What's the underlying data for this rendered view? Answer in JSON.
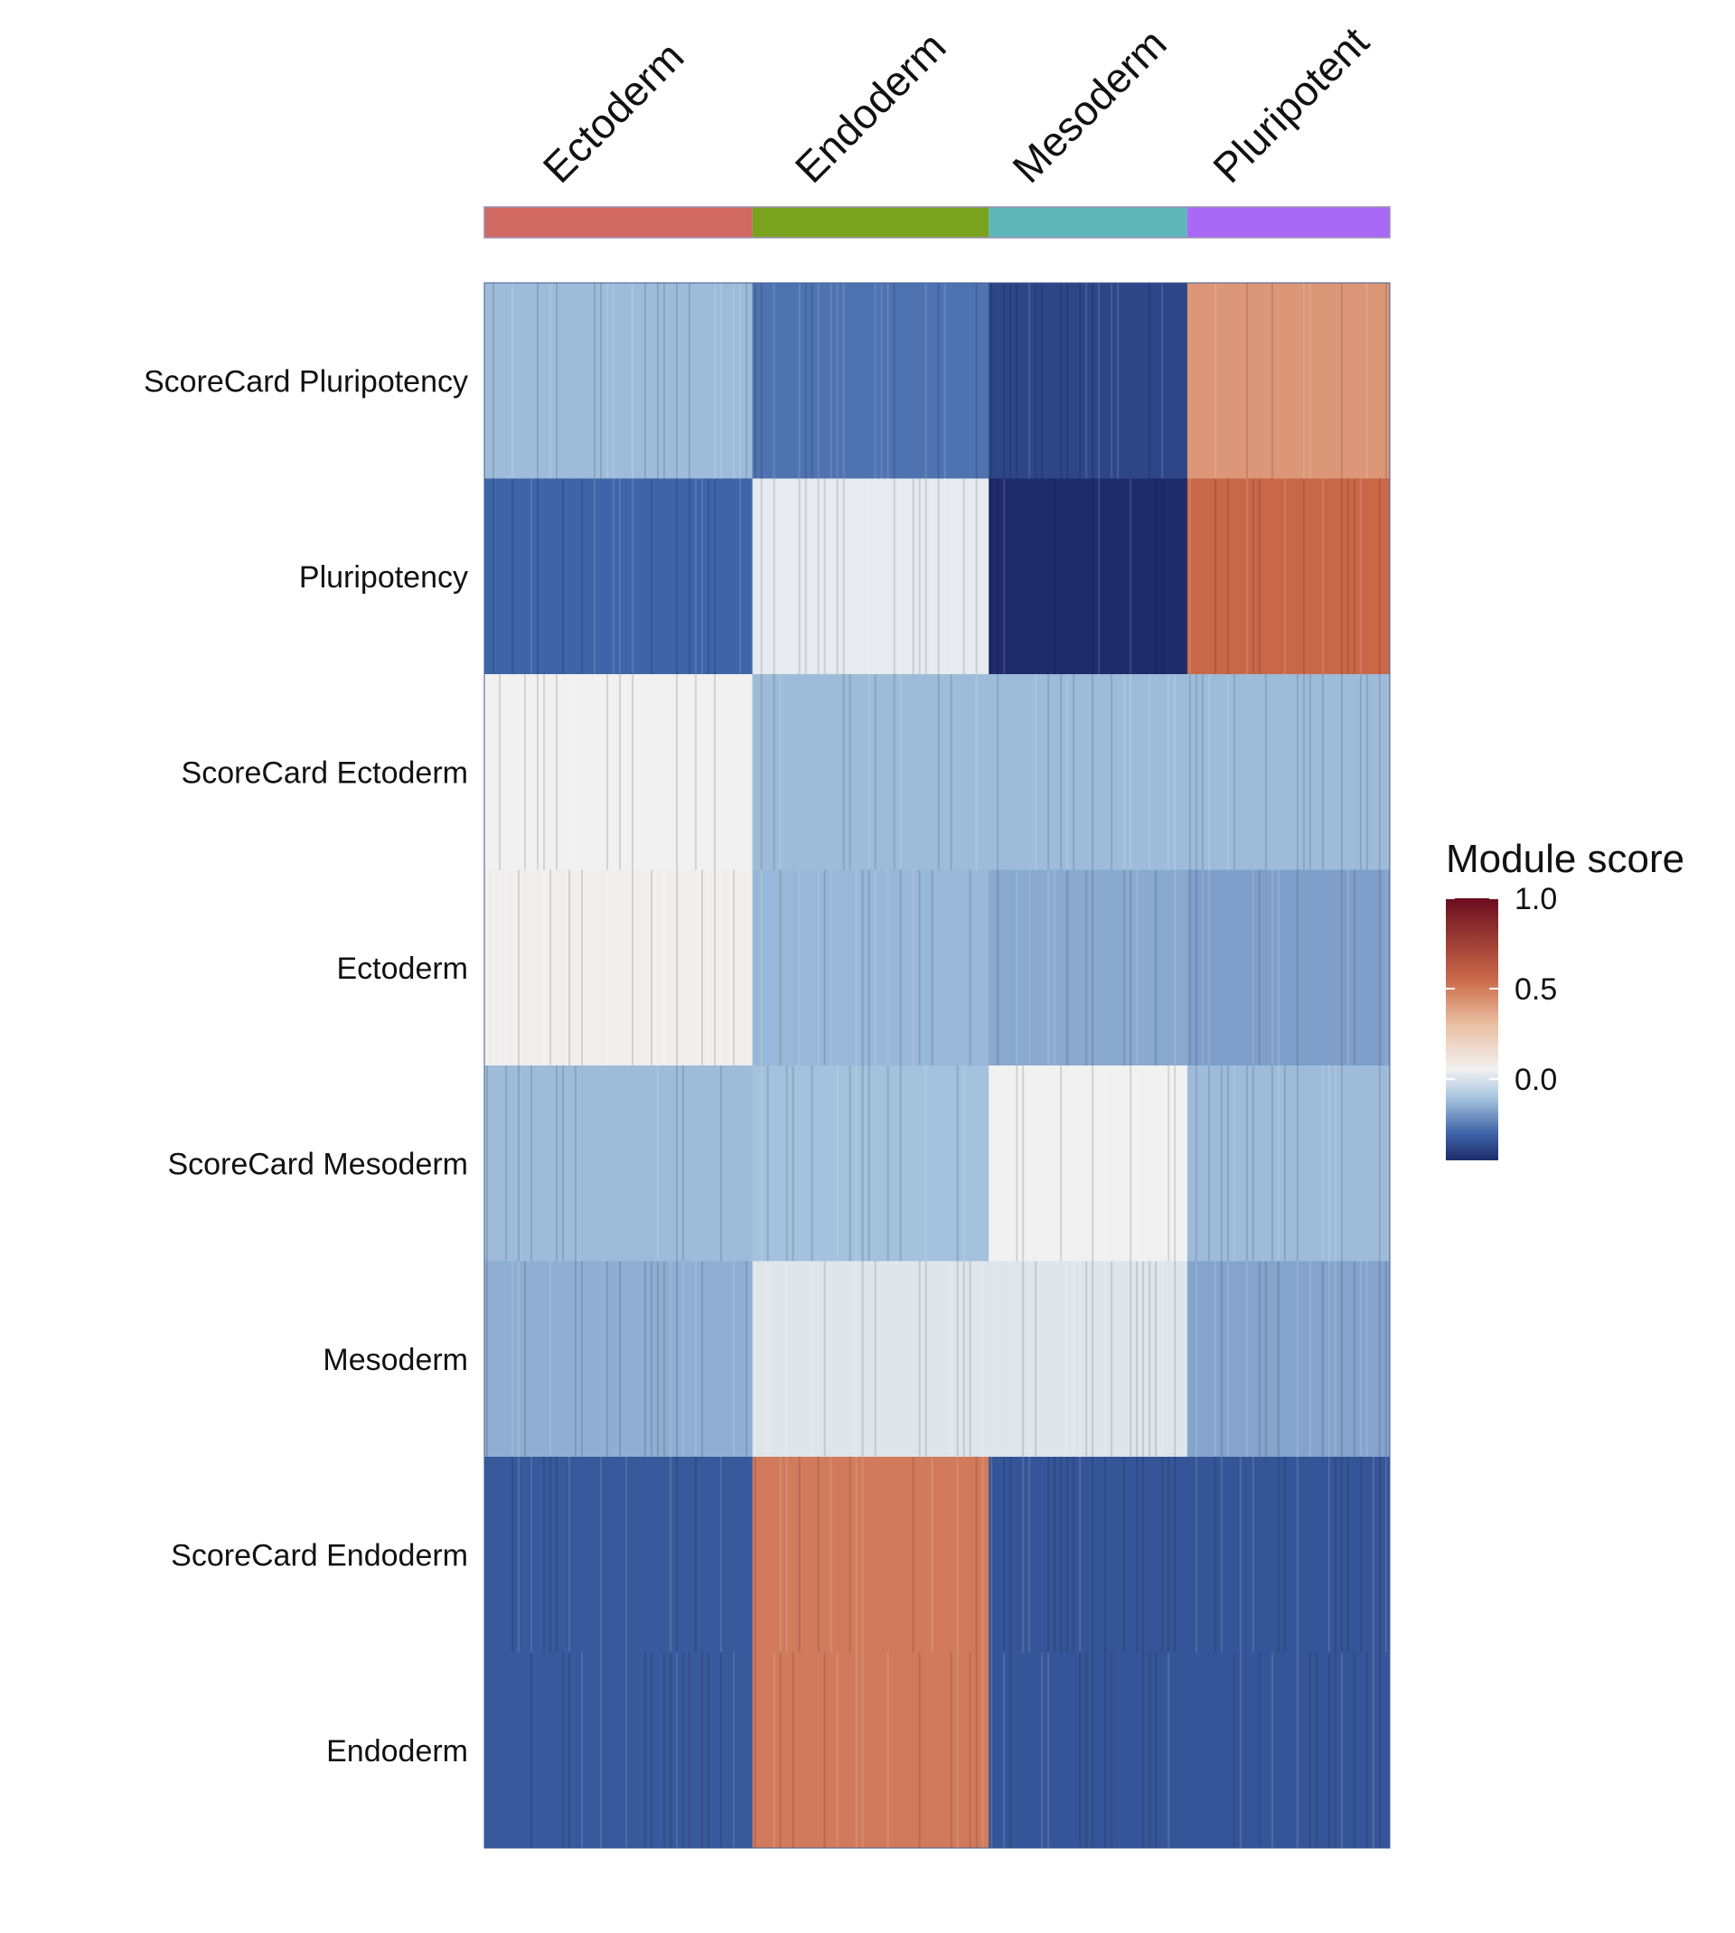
{
  "chart_data": {
    "type": "heatmap",
    "columns": [
      "Ectoderm",
      "Endoderm",
      "Mesoderm",
      "Pluripotent"
    ],
    "column_colors": [
      "#d06a63",
      "#79a31f",
      "#5fb6b8",
      "#a969f7"
    ],
    "column_relative_widths": [
      1.35,
      1.19,
      1.0,
      1.02
    ],
    "rows": [
      "ScoreCard Pluripotency",
      "Pluripotency",
      "ScoreCard Ectoderm",
      "Ectoderm",
      "ScoreCard Mesoderm",
      "Mesoderm",
      "ScoreCard Endoderm",
      "Endoderm"
    ],
    "values": [
      [
        -0.12,
        -0.27,
        -0.38,
        0.42
      ],
      [
        -0.3,
        0.03,
        -0.45,
        0.56
      ],
      [
        0.05,
        -0.12,
        -0.12,
        -0.12
      ],
      [
        0.06,
        -0.13,
        -0.16,
        -0.18
      ],
      [
        -0.12,
        -0.11,
        0.05,
        -0.12
      ],
      [
        -0.15,
        0.01,
        0.01,
        -0.17
      ],
      [
        -0.33,
        0.5,
        -0.34,
        -0.34
      ],
      [
        -0.33,
        0.5,
        -0.34,
        -0.34
      ]
    ],
    "legend": {
      "title": "Module score",
      "ticks": [
        1.0,
        0.5,
        0.0
      ],
      "tick_labels": [
        "1.0",
        "0.5",
        "0.0"
      ],
      "range": [
        -0.45,
        1.0
      ],
      "colors": [
        "#1e2c6b",
        "#3f64a8",
        "#a9c6e0",
        "#f1f1f1",
        "#eac1a3",
        "#cb6a4a",
        "#6a0c1e"
      ]
    }
  }
}
